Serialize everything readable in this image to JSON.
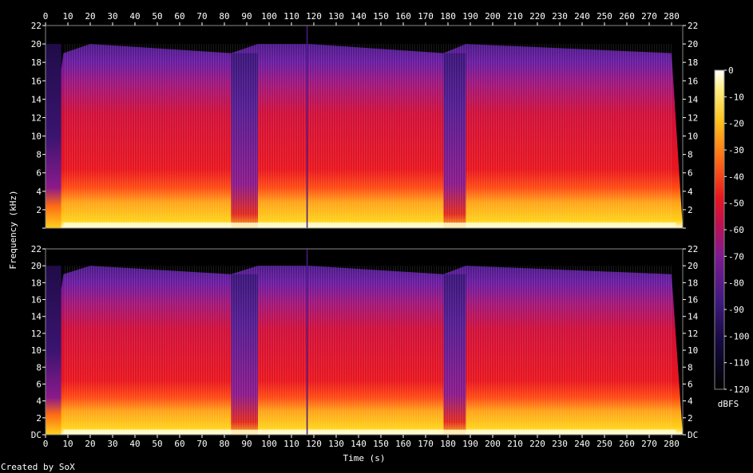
{
  "chart_data": {
    "type": "heatmap",
    "title": "",
    "xlabel": "Time (s)",
    "ylabel": "Frequency (kHz)",
    "xlim": [
      0,
      285
    ],
    "ylim": [
      0,
      22
    ],
    "x_ticks": [
      "0",
      "10",
      "20",
      "30",
      "40",
      "50",
      "60",
      "70",
      "80",
      "90",
      "100",
      "110",
      "120",
      "130",
      "140",
      "150",
      "160",
      "170",
      "180",
      "190",
      "200",
      "210",
      "220",
      "230",
      "240",
      "250",
      "260",
      "270",
      "280"
    ],
    "y_ticks": [
      "DC",
      "2",
      "4",
      "6",
      "8",
      "10",
      "12",
      "14",
      "16",
      "18",
      "20",
      "22"
    ],
    "colorbar": {
      "label": "dBFS",
      "ticks": [
        "0",
        "-10",
        "-20",
        "-30",
        "-40",
        "-50",
        "-60",
        "-70",
        "-80",
        "-90",
        "-100",
        "-110",
        "-120"
      ],
      "range": [
        -120,
        0
      ]
    },
    "channels": 2,
    "quiet_segments_s": [
      [
        83,
        95
      ],
      [
        178,
        188
      ]
    ],
    "energy_cutoff_khz": [
      {
        "t": 0,
        "khz": 5
      },
      {
        "t": 8,
        "khz": 19
      },
      {
        "t": 20,
        "khz": 20
      },
      {
        "t": 83,
        "khz": 19
      },
      {
        "t": 95,
        "khz": 20
      },
      {
        "t": 118,
        "khz": 20
      },
      {
        "t": 178,
        "khz": 19
      },
      {
        "t": 188,
        "khz": 20
      },
      {
        "t": 280,
        "khz": 19
      },
      {
        "t": 285,
        "khz": 0
      }
    ]
  },
  "footer": {
    "credit": "Created by SoX"
  },
  "colors": {
    "hot": "#ffffff",
    "warm": "#ffcc00",
    "mid": "#e01020",
    "cool": "#5a1a90",
    "cold": "#000000"
  }
}
